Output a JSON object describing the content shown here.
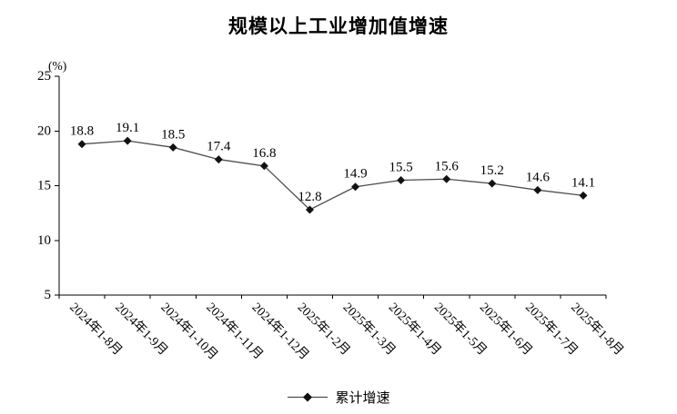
{
  "chart_data": {
    "type": "line",
    "title": "规模以上工业增加值增速",
    "unit_label": "(%)",
    "categories": [
      "2024年1-8月",
      "2024年1-9月",
      "2024年1-10月",
      "2024年1-11月",
      "2024年1-12月",
      "2025年1-2月",
      "2025年1-3月",
      "2025年1-4月",
      "2025年1-5月",
      "2025年1-6月",
      "2025年1-7月",
      "2025年1-8月"
    ],
    "series": [
      {
        "name": "累计增速",
        "marker": "diamond",
        "values": [
          18.8,
          19.1,
          18.5,
          17.4,
          16.8,
          12.8,
          14.9,
          15.5,
          15.6,
          15.2,
          14.6,
          14.1
        ]
      }
    ],
    "ylim": [
      5,
      25
    ],
    "yticks": [
      25,
      20,
      15,
      10,
      5
    ],
    "grid": false,
    "legend_position": "bottom",
    "colors": {
      "line": "#4d4d4d",
      "marker": "#111111",
      "axis": "#000000",
      "text": "#000000"
    }
  }
}
